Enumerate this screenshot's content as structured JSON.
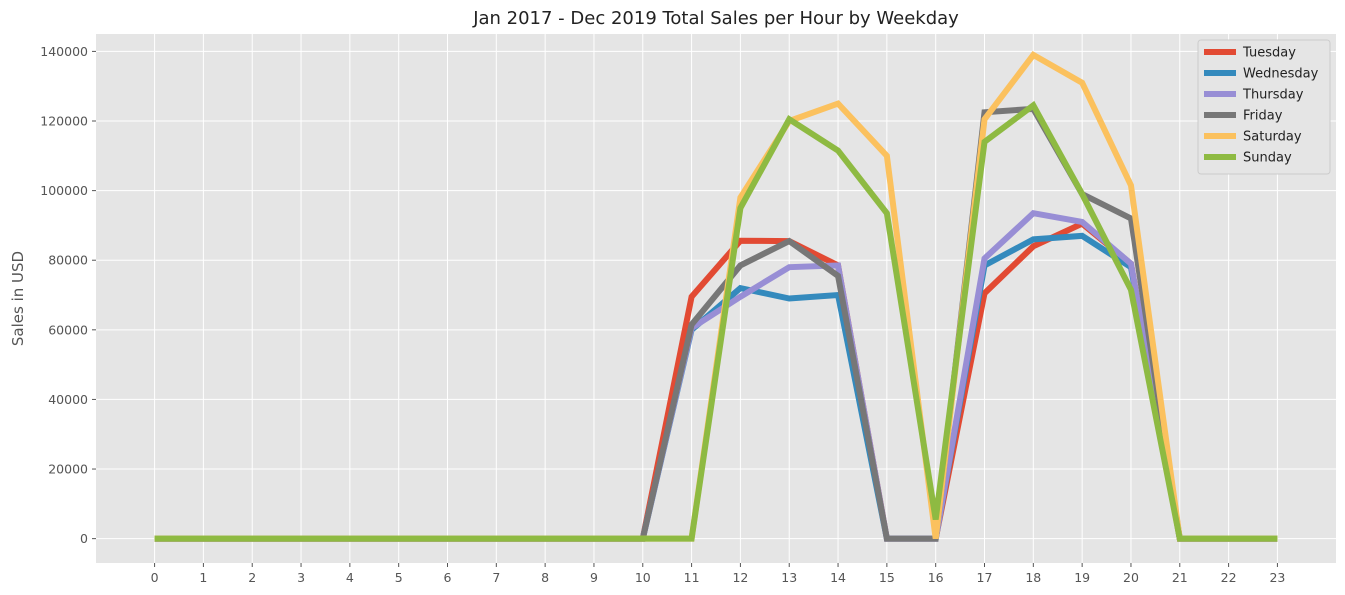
{
  "chart_data": {
    "type": "line",
    "title": "Jan 2017 - Dec 2019 Total Sales per Hour by Weekday",
    "xlabel": "",
    "ylabel": "Sales in USD",
    "x": [
      0,
      1,
      2,
      3,
      4,
      5,
      6,
      7,
      8,
      9,
      10,
      11,
      12,
      13,
      14,
      15,
      16,
      17,
      18,
      19,
      20,
      21,
      22,
      23
    ],
    "xlim": [
      -1.2,
      24.2
    ],
    "ylim": [
      -7000,
      145000
    ],
    "yticks": [
      0,
      20000,
      40000,
      60000,
      80000,
      100000,
      120000,
      140000
    ],
    "grid": true,
    "legend": "top-right",
    "series": [
      {
        "name": "Tuesday",
        "color": "#E24A33",
        "values": [
          0,
          0,
          0,
          0,
          0,
          0,
          0,
          0,
          0,
          0,
          0,
          69500,
          85600,
          85500,
          78500,
          0,
          0,
          70500,
          84000,
          90500,
          79000,
          0,
          0,
          0
        ]
      },
      {
        "name": "Wednesday",
        "color": "#348ABD",
        "values": [
          0,
          0,
          0,
          0,
          0,
          0,
          0,
          0,
          0,
          0,
          0,
          60000,
          72000,
          69000,
          70000,
          0,
          0,
          78500,
          86000,
          87000,
          78000,
          0,
          0,
          0
        ]
      },
      {
        "name": "Thursday",
        "color": "#988ED5",
        "values": [
          0,
          0,
          0,
          0,
          0,
          0,
          0,
          0,
          0,
          0,
          0,
          60500,
          69500,
          78000,
          78500,
          0,
          0,
          80500,
          93500,
          91000,
          79000,
          0,
          0,
          0
        ]
      },
      {
        "name": "Friday",
        "color": "#777777",
        "values": [
          0,
          0,
          0,
          0,
          0,
          0,
          0,
          0,
          0,
          0,
          0,
          61500,
          78500,
          85500,
          75500,
          0,
          0,
          122500,
          123500,
          99000,
          92000,
          0,
          0,
          0
        ]
      },
      {
        "name": "Saturday",
        "color": "#FBC15E",
        "values": [
          0,
          0,
          0,
          0,
          0,
          0,
          0,
          0,
          0,
          0,
          0,
          0,
          98000,
          120000,
          125000,
          110000,
          0,
          120500,
          139000,
          131000,
          101500,
          0,
          0,
          0
        ]
      },
      {
        "name": "Sunday",
        "color": "#8EBA42",
        "values": [
          0,
          0,
          0,
          0,
          0,
          0,
          0,
          0,
          0,
          0,
          0,
          0,
          95000,
          120500,
          111500,
          93500,
          5500,
          114000,
          124500,
          99000,
          71500,
          0,
          0,
          0
        ]
      }
    ]
  }
}
